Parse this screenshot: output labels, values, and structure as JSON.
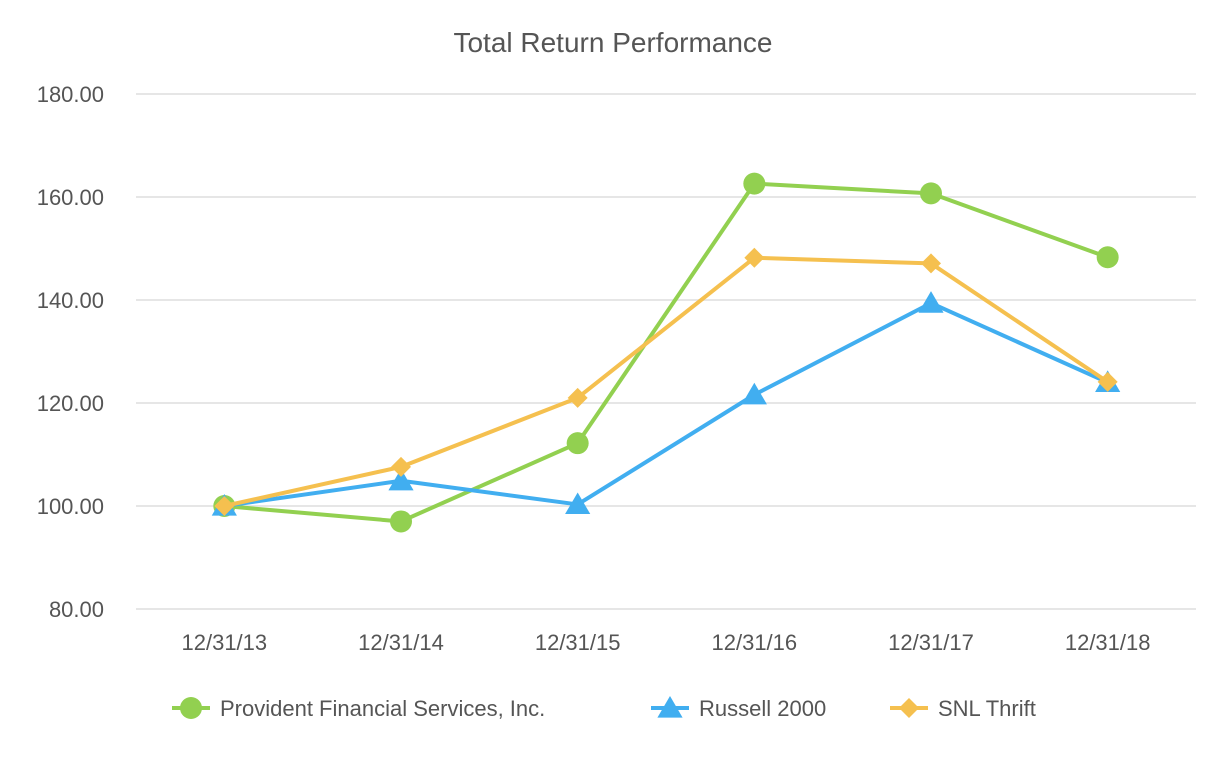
{
  "chart_data": {
    "type": "line",
    "title": "Total Return Performance",
    "xlabel": "",
    "ylabel": "",
    "categories": [
      "12/31/13",
      "12/31/14",
      "12/31/15",
      "12/31/16",
      "12/31/17",
      "12/31/18"
    ],
    "y_ticks": [
      "80.00",
      "100.00",
      "120.00",
      "140.00",
      "160.00",
      "180.00"
    ],
    "ylim": [
      80,
      180
    ],
    "grid": true,
    "legend_position": "bottom",
    "series": [
      {
        "name": "Provident Financial Services, Inc.",
        "marker": "circle",
        "color": "#92d050",
        "values": [
          100.0,
          97.0,
          112.2,
          162.6,
          160.7,
          148.3
        ]
      },
      {
        "name": "Russell 2000",
        "marker": "triangle",
        "color": "#41aef0",
        "values": [
          100.0,
          104.9,
          100.3,
          121.6,
          139.4,
          124.0
        ]
      },
      {
        "name": "SNL Thrift",
        "marker": "diamond",
        "color": "#f5c04f",
        "values": [
          100.0,
          107.6,
          121.0,
          148.2,
          147.1,
          124.1
        ]
      }
    ]
  }
}
